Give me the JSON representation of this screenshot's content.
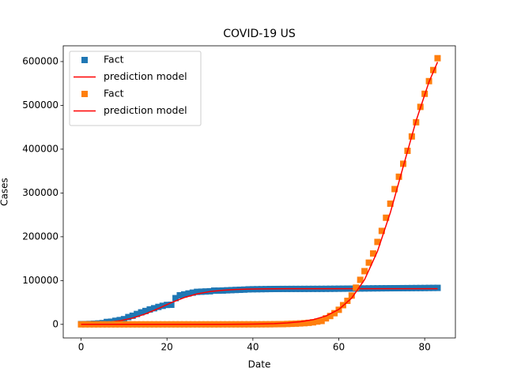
{
  "chart_data": {
    "type": "scatter",
    "title": "COVID-19 US",
    "xlabel": "Date",
    "ylabel": "Cases",
    "xlim": [
      -4.15,
      87.15
    ],
    "xticks": [
      0,
      20,
      40,
      60,
      80
    ],
    "ylim": [
      -31000,
      636000
    ],
    "yticks": [
      0,
      100000,
      200000,
      300000,
      400000,
      500000,
      600000
    ],
    "legend": "upper left",
    "grid": false,
    "series": [
      {
        "name": "Fact",
        "type": "scatter",
        "marker": "square",
        "color": "#1f77b4",
        "x": [
          0,
          1,
          2,
          3,
          4,
          5,
          6,
          7,
          8,
          9,
          10,
          11,
          12,
          13,
          14,
          15,
          16,
          17,
          18,
          19,
          20,
          21,
          22,
          23,
          24,
          25,
          26,
          27,
          28,
          29,
          30,
          31,
          32,
          33,
          34,
          35,
          36,
          37,
          38,
          39,
          40,
          41,
          42,
          43,
          44,
          45,
          46,
          47,
          48,
          49,
          50,
          51,
          52,
          53,
          54,
          55,
          56,
          57,
          58,
          59,
          60,
          61,
          62,
          63,
          64,
          65,
          66,
          67,
          68,
          69,
          70,
          71,
          72,
          73,
          74,
          75,
          76,
          77,
          78,
          79,
          80,
          81,
          82,
          83
        ],
        "values": [
          548,
          643,
          920,
          1406,
          2075,
          2877,
          5509,
          6087,
          8141,
          9802,
          11891,
          16630,
          19716,
          23707,
          27440,
          30587,
          34110,
          36814,
          39829,
          42354,
          44386,
          44759,
          59895,
          66358,
          68413,
          70513,
          72434,
          74211,
          74619,
          75077,
          75550,
          77001,
          77022,
          77241,
          77754,
          78166,
          78600,
          78928,
          79356,
          79932,
          80136,
          80261,
          80386,
          80537,
          80690,
          80770,
          80823,
          80860,
          80887,
          80921,
          80932,
          80945,
          80977,
          81003,
          81033,
          81058,
          81102,
          81156,
          81250,
          81305,
          81435,
          81498,
          81591,
          81661,
          81782,
          81897,
          81999,
          82122,
          82198,
          82279,
          82361,
          82432,
          82511,
          82543,
          82602,
          82665,
          82718,
          82809,
          82883,
          82941,
          83014,
          83134,
          83213,
          83306
        ]
      },
      {
        "name": "prediction model",
        "type": "line",
        "color": "#ff0000",
        "x": [
          0,
          3,
          6,
          9,
          12,
          15,
          18,
          21,
          24,
          27,
          30,
          33,
          36,
          39,
          42,
          45,
          48,
          51,
          54,
          57,
          60,
          63,
          66,
          69,
          72,
          75,
          78,
          81,
          83
        ],
        "values": [
          1227,
          2342,
          4415,
          8126,
          14399,
          23900,
          36287,
          49574,
          61140,
          69540,
          74846,
          77916,
          79606,
          80510,
          80986,
          81233,
          81362,
          81430,
          81464,
          81480,
          81490,
          81495,
          81497,
          81499,
          81500,
          81500,
          81500,
          81500,
          81500
        ]
      },
      {
        "name": "Fact",
        "type": "scatter",
        "marker": "square",
        "color": "#ff7f0e",
        "x": [
          0,
          1,
          2,
          3,
          4,
          5,
          6,
          7,
          8,
          9,
          10,
          11,
          12,
          13,
          14,
          15,
          16,
          17,
          18,
          19,
          20,
          21,
          22,
          23,
          24,
          25,
          26,
          27,
          28,
          29,
          30,
          31,
          32,
          33,
          34,
          35,
          36,
          37,
          38,
          39,
          40,
          41,
          42,
          43,
          44,
          45,
          46,
          47,
          48,
          49,
          50,
          51,
          52,
          53,
          54,
          55,
          56,
          57,
          58,
          59,
          60,
          61,
          62,
          63,
          64,
          65,
          66,
          67,
          68,
          69,
          70,
          71,
          72,
          73,
          74,
          75,
          76,
          77,
          78,
          79,
          80,
          81,
          82,
          83
        ],
        "values": [
          1,
          1,
          2,
          2,
          5,
          5,
          5,
          5,
          5,
          7,
          8,
          8,
          11,
          11,
          11,
          11,
          11,
          11,
          11,
          11,
          12,
          12,
          13,
          13,
          13,
          13,
          13,
          13,
          13,
          13,
          15,
          15,
          15,
          51,
          51,
          57,
          58,
          60,
          68,
          74,
          98,
          118,
          149,
          217,
          262,
          402,
          518,
          583,
          959,
          1281,
          1663,
          2179,
          2727,
          3499,
          4632,
          6421,
          7786,
          13680,
          19101,
          25493,
          33276,
          43847,
          53740,
          65778,
          83836,
          101657,
          121465,
          140909,
          161831,
          188172,
          213372,
          243453,
          275586,
          308850,
          337072,
          366667,
          396223,
          429052,
          461437,
          496535,
          526396,
          555313,
          580619,
          607670
        ]
      },
      {
        "name": "prediction model",
        "type": "line",
        "color": "#ff0000",
        "x": [
          0,
          3,
          6,
          9,
          12,
          15,
          18,
          21,
          24,
          27,
          30,
          33,
          36,
          39,
          42,
          45,
          48,
          51,
          54,
          57,
          60,
          63,
          66,
          69,
          72,
          75,
          78,
          81,
          83
        ],
        "values": [
          0,
          0,
          1,
          1,
          2,
          4,
          8,
          15,
          27,
          49,
          89,
          162,
          295,
          537,
          977,
          1780,
          3240,
          5880,
          10630,
          19150,
          34100,
          59900,
          102100,
          166700,
          255100,
          360000,
          464800,
          553400,
          599000
        ]
      }
    ]
  }
}
